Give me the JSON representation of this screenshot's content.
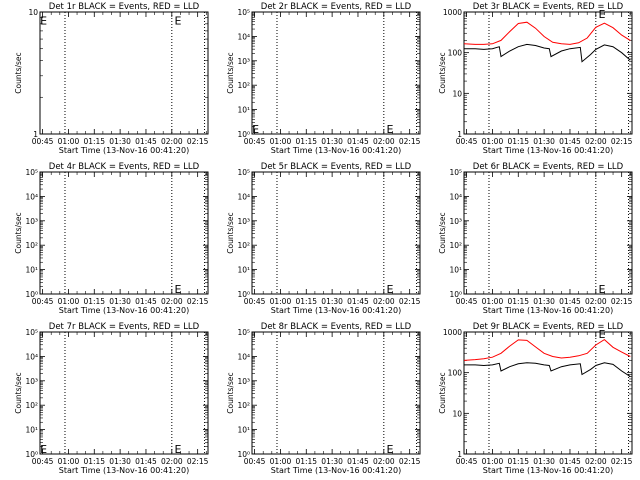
{
  "figure": {
    "xlabel": "Start Time (13-Nov-16 00:41:20)",
    "xticks": [
      "00:45",
      "01:00",
      "01:15",
      "01:30",
      "01:45",
      "02:00",
      "02:15"
    ],
    "ylabel": "Counts/sec"
  },
  "chart_data": [
    {
      "type": "line",
      "title": "Det 1r BLACK = Events, RED = LLD",
      "ylim": [
        1,
        10
      ],
      "yscale": "log",
      "yticks": [
        "1",
        "10"
      ],
      "xticks": [
        "00:45",
        "01:00",
        "01:15",
        "01:30",
        "01:45",
        "02:00",
        "02:15"
      ],
      "xlabel": "Start Time (13-Nov-16 00:41:20)",
      "ylabel": "Counts/sec",
      "vlines": [
        "00:58",
        "02:00",
        "02:19"
      ],
      "markers": [
        {
          "label": "E",
          "x": "00:43",
          "y": 8.5
        },
        {
          "label": "E",
          "x": "02:01",
          "y": 8.5
        }
      ],
      "series": []
    },
    {
      "type": "line",
      "title": "Det 2r BLACK = Events, RED = LLD",
      "ylim": [
        1,
        100000
      ],
      "yscale": "log",
      "yticks": [
        "10⁰",
        "10¹",
        "10²",
        "10³",
        "10⁴",
        "10⁵"
      ],
      "xticks": [
        "00:45",
        "01:00",
        "01:15",
        "01:30",
        "01:45",
        "02:00",
        "02:15"
      ],
      "xlabel": "Start Time (13-Nov-16 00:41:20)",
      "ylabel": "Counts/sec",
      "vlines": [
        "00:58",
        "02:00",
        "02:19"
      ],
      "markers": [
        {
          "label": "E",
          "x": "00:43",
          "y": 1.6
        },
        {
          "label": "E",
          "x": "02:01",
          "y": 1.6
        }
      ],
      "series": []
    },
    {
      "type": "line",
      "title": "Det 3r BLACK = Events, RED = LLD",
      "ylim": [
        1,
        1000
      ],
      "yscale": "log",
      "yticks": [
        "1",
        "10",
        "100",
        "1000"
      ],
      "xticks": [
        "00:45",
        "01:00",
        "01:15",
        "01:30",
        "01:45",
        "02:00",
        "02:15"
      ],
      "xlabel": "Start Time (13-Nov-16 00:41:20)",
      "ylabel": "Counts/sec",
      "vlines": [
        "00:58",
        "02:00",
        "02:19"
      ],
      "markers": [
        {
          "label": "E",
          "x": "02:01",
          "y": 900
        }
      ],
      "series": [
        {
          "color": "#ff0000",
          "x": [
            "00:43",
            "00:50",
            "00:55",
            "01:00",
            "01:05",
            "01:10",
            "01:15",
            "01:20",
            "01:25",
            "01:30",
            "01:35",
            "01:40",
            "01:45",
            "01:50",
            "01:55",
            "02:00",
            "02:05",
            "02:10",
            "02:15",
            "02:20"
          ],
          "y": [
            165,
            160,
            160,
            165,
            200,
            330,
            520,
            560,
            400,
            250,
            180,
            165,
            160,
            175,
            230,
            420,
            530,
            410,
            270,
            200
          ]
        },
        {
          "color": "#000000",
          "x": [
            "00:43",
            "00:50",
            "00:55",
            "01:00",
            "01:04",
            "01:05",
            "01:10",
            "01:15",
            "01:20",
            "01:25",
            "01:30",
            "01:33",
            "01:34",
            "01:40",
            "01:45",
            "01:51",
            "01:52",
            "01:57",
            "02:00",
            "02:05",
            "02:10",
            "02:15",
            "02:20"
          ],
          "y": [
            125,
            125,
            120,
            125,
            140,
            80,
            110,
            140,
            160,
            150,
            130,
            125,
            80,
            110,
            125,
            135,
            60,
            90,
            120,
            155,
            140,
            100,
            65
          ]
        }
      ]
    },
    {
      "type": "line",
      "title": "Det 4r BLACK = Events, RED = LLD",
      "ylim": [
        1,
        100000
      ],
      "yscale": "log",
      "yticks": [
        "10⁰",
        "10¹",
        "10²",
        "10³",
        "10⁴",
        "10⁵"
      ],
      "xticks": [
        "00:45",
        "01:00",
        "01:15",
        "01:30",
        "01:45",
        "02:00",
        "02:15"
      ],
      "xlabel": "Start Time (13-Nov-16 00:41:20)",
      "ylabel": "Counts/sec",
      "vlines": [
        "00:58",
        "02:00",
        "02:19"
      ],
      "markers": [
        {
          "label": "E",
          "x": "02:01",
          "y": 1.6
        }
      ],
      "series": []
    },
    {
      "type": "line",
      "title": "Det 5r BLACK = Events, RED = LLD",
      "ylim": [
        1,
        100000
      ],
      "yscale": "log",
      "yticks": [
        "10⁰",
        "10¹",
        "10²",
        "10³",
        "10⁴",
        "10⁵"
      ],
      "xticks": [
        "00:45",
        "01:00",
        "01:15",
        "01:30",
        "01:45",
        "02:00",
        "02:15"
      ],
      "xlabel": "Start Time (13-Nov-16 00:41:20)",
      "ylabel": "Counts/sec",
      "vlines": [
        "00:58",
        "02:00",
        "02:19"
      ],
      "markers": [
        {
          "label": "E",
          "x": "02:01",
          "y": 1.6
        }
      ],
      "series": []
    },
    {
      "type": "line",
      "title": "Det 6r BLACK = Events, RED = LLD",
      "ylim": [
        1,
        100000
      ],
      "yscale": "log",
      "yticks": [
        "10⁰",
        "10¹",
        "10²",
        "10³",
        "10⁴",
        "10⁵"
      ],
      "xticks": [
        "00:45",
        "01:00",
        "01:15",
        "01:30",
        "01:45",
        "02:00",
        "02:15"
      ],
      "xlabel": "Start Time (13-Nov-16 00:41:20)",
      "ylabel": "Counts/sec",
      "vlines": [
        "00:58",
        "02:00",
        "02:19"
      ],
      "markers": [
        {
          "label": "E",
          "x": "02:01",
          "y": 1.6
        }
      ],
      "series": []
    },
    {
      "type": "line",
      "title": "Det 7r BLACK = Events, RED = LLD",
      "ylim": [
        1,
        100000
      ],
      "yscale": "log",
      "yticks": [
        "10⁰",
        "10¹",
        "10²",
        "10³",
        "10⁴",
        "10⁵"
      ],
      "xticks": [
        "00:45",
        "01:00",
        "01:15",
        "01:30",
        "01:45",
        "02:00",
        "02:15"
      ],
      "xlabel": "Start Time (13-Nov-16 00:41:20)",
      "ylabel": "Counts/sec",
      "vlines": [
        "00:58",
        "02:00",
        "02:19"
      ],
      "markers": [
        {
          "label": "E",
          "x": "00:43",
          "y": 1.6
        },
        {
          "label": "E",
          "x": "02:01",
          "y": 1.6
        }
      ],
      "series": []
    },
    {
      "type": "line",
      "title": "Det 8r BLACK = Events, RED = LLD",
      "ylim": [
        1,
        100000
      ],
      "yscale": "log",
      "yticks": [
        "10⁰",
        "10¹",
        "10²",
        "10³",
        "10⁴",
        "10⁵"
      ],
      "xticks": [
        "00:45",
        "01:00",
        "01:15",
        "01:30",
        "01:45",
        "02:00",
        "02:15"
      ],
      "xlabel": "Start Time (13-Nov-16 00:41:20)",
      "ylabel": "Counts/sec",
      "vlines": [
        "00:58",
        "02:00",
        "02:19"
      ],
      "markers": [
        {
          "label": "E",
          "x": "02:01",
          "y": 1.6
        }
      ],
      "series": []
    },
    {
      "type": "line",
      "title": "Det 9r BLACK = Events, RED = LLD",
      "ylim": [
        1,
        1000
      ],
      "yscale": "log",
      "yticks": [
        "1",
        "10",
        "100",
        "1000"
      ],
      "xticks": [
        "00:45",
        "01:00",
        "01:15",
        "01:30",
        "01:45",
        "02:00",
        "02:15"
      ],
      "xlabel": "Start Time (13-Nov-16 00:41:20)",
      "ylabel": "Counts/sec",
      "vlines": [
        "00:58",
        "02:00",
        "02:19"
      ],
      "markers": [
        {
          "label": "E",
          "x": "02:01",
          "y": 900
        }
      ],
      "series": [
        {
          "color": "#ff0000",
          "x": [
            "00:43",
            "00:50",
            "00:55",
            "01:00",
            "01:05",
            "01:10",
            "01:15",
            "01:20",
            "01:25",
            "01:30",
            "01:35",
            "01:40",
            "01:45",
            "01:50",
            "01:55",
            "02:00",
            "02:05",
            "02:10",
            "02:15",
            "02:20"
          ],
          "y": [
            200,
            210,
            220,
            240,
            300,
            450,
            640,
            620,
            430,
            300,
            250,
            230,
            240,
            260,
            300,
            480,
            650,
            420,
            320,
            250
          ]
        },
        {
          "color": "#000000",
          "x": [
            "00:43",
            "00:50",
            "00:55",
            "01:00",
            "01:04",
            "01:05",
            "01:10",
            "01:15",
            "01:20",
            "01:25",
            "01:30",
            "01:33",
            "01:34",
            "01:40",
            "01:45",
            "01:51",
            "01:52",
            "01:57",
            "02:00",
            "02:05",
            "02:10",
            "02:15",
            "02:20"
          ],
          "y": [
            155,
            155,
            150,
            155,
            170,
            110,
            140,
            165,
            175,
            170,
            155,
            150,
            110,
            140,
            155,
            165,
            90,
            120,
            150,
            175,
            160,
            110,
            80
          ]
        }
      ]
    }
  ]
}
